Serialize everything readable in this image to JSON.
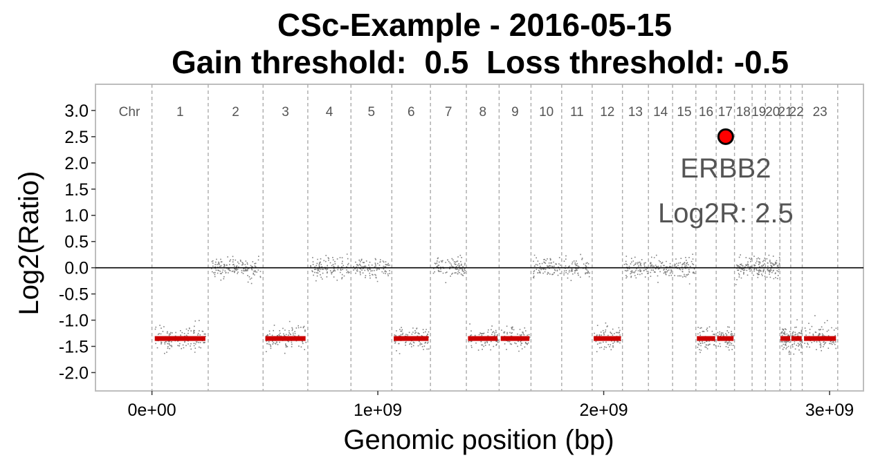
{
  "chart_data": {
    "type": "scatter",
    "title": "CSc-Example - 2016-05-15",
    "subtitle": "Gain threshold:  0.5  Loss threshold: -0.5",
    "xlabel": "Genomic position (bp)",
    "ylabel": "Log2(Ratio)",
    "xlim": [
      -250000000,
      3150000000
    ],
    "ylim": [
      -2.35,
      3.5
    ],
    "x_ticks": [
      {
        "value": 0,
        "label": "0e+00"
      },
      {
        "value": 1000000000,
        "label": "1e+09"
      },
      {
        "value": 2000000000,
        "label": "2e+09"
      },
      {
        "value": 3000000000,
        "label": "3e+09"
      }
    ],
    "y_ticks": [
      {
        "value": 3.0,
        "label": "3.0"
      },
      {
        "value": 2.5,
        "label": "2.5"
      },
      {
        "value": 2.0,
        "label": "2.0"
      },
      {
        "value": 1.5,
        "label": "1.5"
      },
      {
        "value": 1.0,
        "label": "1.0"
      },
      {
        "value": 0.5,
        "label": "0.5"
      },
      {
        "value": 0.0,
        "label": "0.0"
      },
      {
        "value": -0.5,
        "label": "-0.5"
      },
      {
        "value": -1.0,
        "label": "-1.0"
      },
      {
        "value": -1.5,
        "label": "-1.5"
      },
      {
        "value": -2.0,
        "label": "-2.0"
      }
    ],
    "grid": false,
    "reference_line_y": 0,
    "chr_header_label": "Chr",
    "chromosomes": [
      {
        "label": "1",
        "start": 0,
        "end": 249000000,
        "seg_mean": -1.35,
        "called_loss": true
      },
      {
        "label": "2",
        "start": 249000000,
        "end": 492000000,
        "seg_mean": 0.0,
        "called_loss": false
      },
      {
        "label": "3",
        "start": 492000000,
        "end": 690000000,
        "seg_mean": -1.35,
        "called_loss": true
      },
      {
        "label": "4",
        "start": 690000000,
        "end": 881000000,
        "seg_mean": 0.0,
        "called_loss": false
      },
      {
        "label": "5",
        "start": 881000000,
        "end": 1062000000,
        "seg_mean": 0.0,
        "called_loss": false
      },
      {
        "label": "6",
        "start": 1062000000,
        "end": 1233000000,
        "seg_mean": -1.35,
        "called_loss": true
      },
      {
        "label": "7",
        "start": 1233000000,
        "end": 1392000000,
        "seg_mean": 0.0,
        "called_loss": false
      },
      {
        "label": "8",
        "start": 1392000000,
        "end": 1537000000,
        "seg_mean": -1.35,
        "called_loss": true
      },
      {
        "label": "9",
        "start": 1537000000,
        "end": 1678000000,
        "seg_mean": -1.35,
        "called_loss": true
      },
      {
        "label": "10",
        "start": 1678000000,
        "end": 1814000000,
        "seg_mean": 0.0,
        "called_loss": false
      },
      {
        "label": "11",
        "start": 1814000000,
        "end": 1949000000,
        "seg_mean": 0.0,
        "called_loss": false
      },
      {
        "label": "12",
        "start": 1949000000,
        "end": 2083000000,
        "seg_mean": -1.35,
        "called_loss": true
      },
      {
        "label": "13",
        "start": 2083000000,
        "end": 2198000000,
        "seg_mean": 0.0,
        "called_loss": false
      },
      {
        "label": "14",
        "start": 2198000000,
        "end": 2305000000,
        "seg_mean": 0.0,
        "called_loss": false
      },
      {
        "label": "15",
        "start": 2305000000,
        "end": 2408000000,
        "seg_mean": 0.0,
        "called_loss": false
      },
      {
        "label": "16",
        "start": 2408000000,
        "end": 2498000000,
        "seg_mean": -1.35,
        "called_loss": true
      },
      {
        "label": "17",
        "start": 2498000000,
        "end": 2579000000,
        "seg_mean": -1.35,
        "called_loss": true
      },
      {
        "label": "18",
        "start": 2579000000,
        "end": 2657000000,
        "seg_mean": 0.0,
        "called_loss": false
      },
      {
        "label": "19",
        "start": 2657000000,
        "end": 2716000000,
        "seg_mean": 0.0,
        "called_loss": false
      },
      {
        "label": "20",
        "start": 2716000000,
        "end": 2780000000,
        "seg_mean": 0.0,
        "called_loss": false
      },
      {
        "label": "21",
        "start": 2780000000,
        "end": 2828000000,
        "seg_mean": -1.35,
        "called_loss": true
      },
      {
        "label": "22",
        "start": 2828000000,
        "end": 2879000000,
        "seg_mean": -1.35,
        "called_loss": true
      },
      {
        "label": "23",
        "start": 2879000000,
        "end": 3036000000,
        "seg_mean": -1.35,
        "called_loss": true
      }
    ],
    "highlight": {
      "gene": "ERBB2",
      "x": 2540000000,
      "y": 2.5,
      "label_line1": "ERBB2",
      "label_line2": "Log2R: 2.5"
    },
    "colors": {
      "points": "#7f7f7f",
      "segment": "#cc0000",
      "highlight_fill": "#ff0000",
      "chr_divider": "#aaaaaa"
    }
  }
}
